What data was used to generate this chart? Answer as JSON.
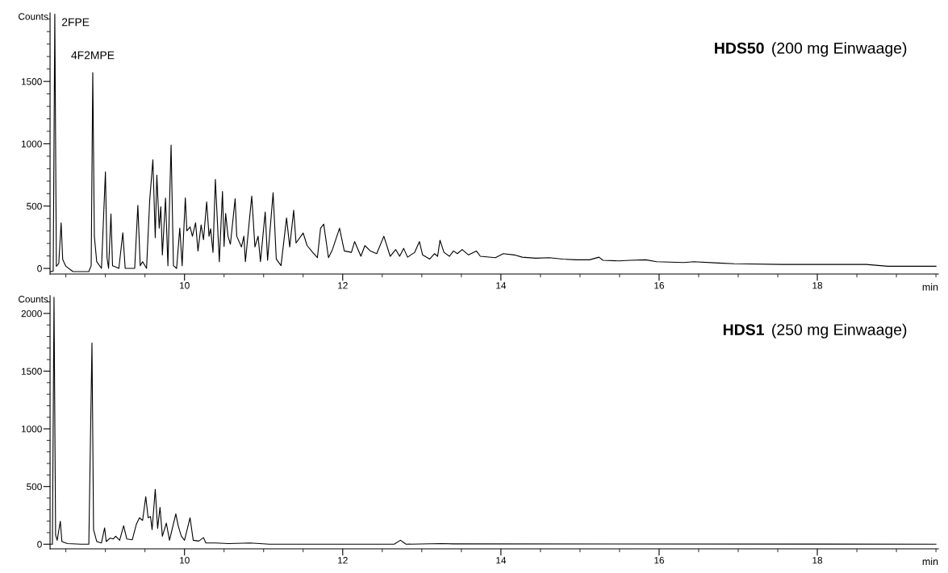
{
  "chart_data": [
    {
      "type": "line",
      "title": "HDS50 (200 mg Einwaage)",
      "xlabel": "min",
      "ylabel": "Counts",
      "grid": false,
      "legend": false,
      "marker": "none",
      "line_style": "solid",
      "xlim": [
        8.3,
        19.53
      ],
      "ylim": [
        -45,
        2050
      ],
      "xticks": [
        {
          "value": 8.5,
          "label": null
        },
        {
          "value": 9,
          "label": null
        },
        {
          "value": 9.5,
          "label": null
        },
        10,
        {
          "value": 10.5,
          "label": null
        },
        {
          "value": 11,
          "label": null
        },
        {
          "value": 11.5,
          "label": null
        },
        12,
        {
          "value": 12.5,
          "label": null
        },
        {
          "value": 13,
          "label": null
        },
        {
          "value": 13.5,
          "label": null
        },
        14,
        {
          "value": 14.5,
          "label": null
        },
        {
          "value": 15,
          "label": null
        },
        {
          "value": 15.5,
          "label": null
        },
        16,
        {
          "value": 16.5,
          "label": null
        },
        {
          "value": 17,
          "label": null
        },
        {
          "value": 17.5,
          "label": null
        },
        18,
        {
          "value": 18.5,
          "label": null
        },
        {
          "value": 19,
          "label": null
        },
        {
          "value": 19.5,
          "label": null
        }
      ],
      "yticks": [
        0,
        {
          "value": 100,
          "label": null
        },
        {
          "value": 200,
          "label": null
        },
        {
          "value": 300,
          "label": null
        },
        {
          "value": 400,
          "label": null
        },
        500,
        {
          "value": 600,
          "label": null
        },
        {
          "value": 700,
          "label": null
        },
        {
          "value": 800,
          "label": null
        },
        {
          "value": 900,
          "label": null
        },
        1000,
        {
          "value": 1100,
          "label": null
        },
        {
          "value": 1200,
          "label": null
        },
        {
          "value": 1300,
          "label": null
        },
        {
          "value": 1400,
          "label": null
        },
        1500,
        {
          "value": 1600,
          "label": null
        },
        {
          "value": 1700,
          "label": null
        },
        {
          "value": 1800,
          "label": null
        },
        {
          "value": 1900,
          "label": null
        },
        {
          "value": 2000,
          "label": null
        }
      ],
      "annotations": [
        {
          "text": "2FPE",
          "x": 8.36,
          "y": 2040
        },
        {
          "text": "4F2MPE",
          "x": 8.84,
          "y": 1571
        }
      ],
      "series": [
        {
          "color": "#000000",
          "x": [
            8.3,
            8.34,
            8.36,
            8.38,
            8.41,
            8.44,
            8.46,
            8.5,
            8.59,
            8.79,
            8.82,
            8.84,
            8.86,
            8.89,
            8.95,
            9.0,
            9.02,
            9.04,
            9.07,
            9.09,
            9.13,
            9.17,
            9.22,
            9.25,
            9.37,
            9.41,
            9.44,
            9.47,
            9.52,
            9.56,
            9.6,
            9.63,
            9.65,
            9.68,
            9.7,
            9.72,
            9.76,
            9.79,
            9.83,
            9.86,
            9.9,
            9.94,
            9.97,
            10.01,
            10.03,
            10.07,
            10.1,
            10.14,
            10.17,
            10.21,
            10.24,
            10.28,
            10.31,
            10.33,
            10.36,
            10.39,
            10.44,
            10.48,
            10.5,
            10.52,
            10.55,
            10.58,
            10.64,
            10.66,
            10.72,
            10.75,
            10.77,
            10.83,
            10.85,
            10.89,
            10.93,
            10.96,
            11.02,
            11.05,
            11.12,
            11.16,
            11.22,
            11.29,
            11.33,
            11.38,
            11.41,
            11.5,
            11.55,
            11.62,
            11.68,
            11.72,
            11.76,
            11.82,
            11.87,
            11.96,
            12.02,
            12.11,
            12.15,
            12.23,
            12.28,
            12.35,
            12.43,
            12.52,
            12.6,
            12.67,
            12.72,
            12.77,
            12.82,
            12.91,
            12.97,
            13.01,
            13.1,
            13.16,
            13.2,
            13.23,
            13.28,
            13.35,
            13.4,
            13.45,
            13.51,
            13.59,
            13.69,
            13.74,
            13.93,
            14.03,
            14.17,
            14.27,
            14.44,
            14.61,
            14.78,
            14.95,
            15.12,
            15.24,
            15.29,
            15.49,
            15.63,
            15.83,
            15.97,
            16.31,
            16.44,
            16.75,
            16.95,
            17.56,
            18.62,
            18.89,
            19.5
          ],
          "values": [
            -26,
            -22,
            2040,
            17,
            39,
            366,
            72,
            17,
            -26,
            -26,
            22,
            1571,
            258,
            54,
            0,
            775,
            86,
            0,
            437,
            22,
            11,
            0,
            286,
            0,
            0,
            506,
            22,
            54,
            0,
            549,
            872,
            247,
            749,
            323,
            495,
            108,
            564,
            22,
            990,
            22,
            0,
            323,
            22,
            566,
            301,
            333,
            258,
            366,
            140,
            349,
            230,
            534,
            258,
            318,
            129,
            714,
            54,
            618,
            176,
            441,
            258,
            194,
            560,
            258,
            172,
            258,
            54,
            452,
            581,
            172,
            258,
            54,
            452,
            65,
            607,
            75,
            22,
            405,
            172,
            467,
            204,
            284,
            183,
            129,
            86,
            323,
            355,
            86,
            151,
            323,
            140,
            129,
            215,
            97,
            183,
            140,
            118,
            258,
            97,
            151,
            97,
            161,
            90,
            129,
            215,
            108,
            75,
            118,
            97,
            226,
            129,
            97,
            140,
            118,
            151,
            108,
            140,
            97,
            86,
            118,
            108,
            90,
            82,
            86,
            75,
            69,
            69,
            90,
            65,
            60,
            65,
            69,
            54,
            47,
            54,
            43,
            37,
            32,
            32,
            17,
            17
          ]
        }
      ]
    },
    {
      "type": "line",
      "title": "HDS1 (250 mg Einwaage)",
      "xlabel": "min",
      "ylabel": "Counts",
      "grid": false,
      "legend": false,
      "marker": "none",
      "line_style": "solid",
      "xlim": [
        8.3,
        19.53
      ],
      "ylim": [
        -40,
        2155
      ],
      "xticks": [
        {
          "value": 8.5,
          "label": null
        },
        {
          "value": 9,
          "label": null
        },
        {
          "value": 9.5,
          "label": null
        },
        10,
        {
          "value": 10.5,
          "label": null
        },
        {
          "value": 11,
          "label": null
        },
        {
          "value": 11.5,
          "label": null
        },
        12,
        {
          "value": 12.5,
          "label": null
        },
        {
          "value": 13,
          "label": null
        },
        {
          "value": 13.5,
          "label": null
        },
        14,
        {
          "value": 14.5,
          "label": null
        },
        {
          "value": 15,
          "label": null
        },
        {
          "value": 15.5,
          "label": null
        },
        16,
        {
          "value": 16.5,
          "label": null
        },
        {
          "value": 17,
          "label": null
        },
        {
          "value": 17.5,
          "label": null
        },
        18,
        {
          "value": 18.5,
          "label": null
        },
        {
          "value": 19,
          "label": null
        },
        {
          "value": 19.5,
          "label": null
        }
      ],
      "yticks": [
        0,
        {
          "value": 100,
          "label": null
        },
        {
          "value": 200,
          "label": null
        },
        {
          "value": 300,
          "label": null
        },
        {
          "value": 400,
          "label": null
        },
        500,
        {
          "value": 600,
          "label": null
        },
        {
          "value": 700,
          "label": null
        },
        {
          "value": 800,
          "label": null
        },
        {
          "value": 900,
          "label": null
        },
        1000,
        {
          "value": 1100,
          "label": null
        },
        {
          "value": 1200,
          "label": null
        },
        {
          "value": 1300,
          "label": null
        },
        {
          "value": 1400,
          "label": null
        },
        1500,
        {
          "value": 1600,
          "label": null
        },
        {
          "value": 1700,
          "label": null
        },
        {
          "value": 1800,
          "label": null
        },
        {
          "value": 1900,
          "label": null
        },
        2000,
        {
          "value": 2100,
          "label": null
        }
      ],
      "series": [
        {
          "color": "#000000",
          "x": [
            8.3,
            8.33,
            8.35,
            8.37,
            8.39,
            8.43,
            8.45,
            8.52,
            8.69,
            8.79,
            8.83,
            8.85,
            8.89,
            8.95,
            8.99,
            9.01,
            9.06,
            9.1,
            9.13,
            9.18,
            9.23,
            9.27,
            9.34,
            9.39,
            9.43,
            9.47,
            9.51,
            9.54,
            9.57,
            9.59,
            9.63,
            9.66,
            9.69,
            9.72,
            9.77,
            9.81,
            9.89,
            9.92,
            9.96,
            10.0,
            10.07,
            10.11,
            10.18,
            10.24,
            10.27,
            10.39,
            10.56,
            10.83,
            11.07,
            11.75,
            12.65,
            12.73,
            12.8,
            13.25,
            13.4,
            19.5
          ],
          "values": [
            0,
            0,
            2140,
            80,
            34,
            199,
            23,
            5,
            0,
            0,
            1744,
            126,
            23,
            11,
            142,
            23,
            53,
            46,
            69,
            34,
            160,
            46,
            39,
            171,
            229,
            206,
            411,
            229,
            240,
            126,
            475,
            137,
            320,
            69,
            183,
            34,
            263,
            160,
            69,
            34,
            229,
            34,
            27,
            57,
            11,
            11,
            5,
            11,
            0,
            0,
            0,
            34,
            0,
            5,
            3,
            0
          ]
        }
      ]
    }
  ]
}
